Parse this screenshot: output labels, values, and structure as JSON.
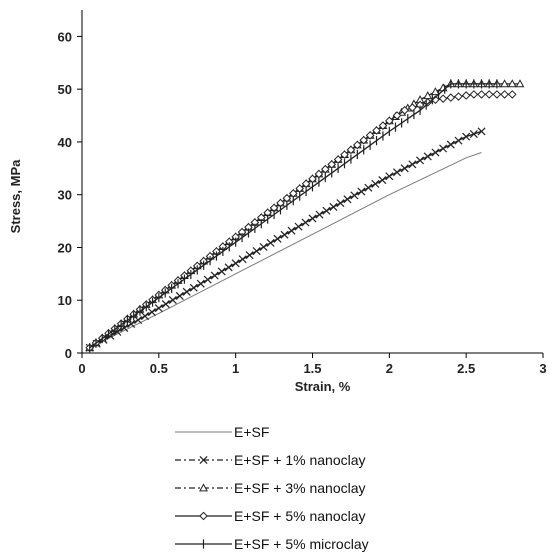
{
  "chart_data": {
    "type": "line",
    "xlabel": "Strain, %",
    "ylabel": "Stress, MPa",
    "xlim": [
      0,
      3
    ],
    "ylim": [
      0,
      65
    ],
    "x_ticks": [
      "0",
      "0.5",
      "1",
      "1.5",
      "2",
      "2.5",
      "3"
    ],
    "y_ticks": [
      "0",
      "10",
      "20",
      "30",
      "40",
      "50",
      "60"
    ],
    "grid": false,
    "legend_position": "bottom",
    "series": [
      {
        "name": "E+SF",
        "marker": "none",
        "dash": "solid",
        "color": "#7a7a7a",
        "x": [
          0.05,
          0.5,
          1.0,
          1.5,
          2.0,
          2.5,
          2.6
        ],
        "y": [
          1,
          7.5,
          15,
          22.5,
          30,
          37,
          38
        ]
      },
      {
        "name": "E+SF + 1% nanoclay",
        "marker": "x",
        "dash": "dash-dot",
        "color": "#222222",
        "x": [
          0.05,
          0.5,
          1.0,
          1.5,
          2.0,
          2.3,
          2.5,
          2.6
        ],
        "y": [
          1,
          8.5,
          17,
          25.5,
          33.5,
          38,
          41,
          42
        ]
      },
      {
        "name": "E+SF + 3% nanoclay",
        "marker": "triangle",
        "dash": "dash-dot",
        "color": "#222222",
        "x": [
          0.05,
          0.5,
          1.0,
          1.5,
          2.0,
          2.2,
          2.4,
          2.6,
          2.85
        ],
        "y": [
          1,
          11,
          22,
          33,
          44,
          48,
          51,
          51,
          51
        ]
      },
      {
        "name": "E+SF + 5% nanoclay",
        "marker": "diamond",
        "dash": "solid",
        "color": "#222222",
        "x": [
          0.05,
          0.5,
          1.0,
          1.5,
          2.0,
          2.1,
          2.3,
          2.55,
          2.8
        ],
        "y": [
          1,
          11,
          22,
          33,
          44,
          46,
          48,
          49,
          49
        ]
      },
      {
        "name": "E+SF + 5% microclay",
        "marker": "plus",
        "dash": "solid",
        "color": "#222222",
        "x": [
          0.05,
          0.5,
          1.0,
          1.5,
          2.0,
          2.2,
          2.4,
          2.55,
          2.7
        ],
        "y": [
          1,
          10.5,
          21,
          31.5,
          42,
          46,
          51,
          51,
          51
        ]
      }
    ]
  }
}
